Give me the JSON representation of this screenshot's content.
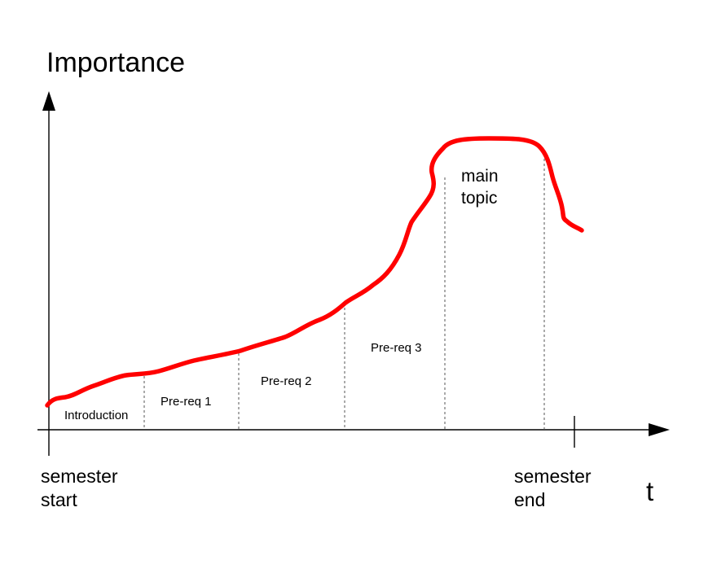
{
  "diagram": {
    "y_axis_label": "Importance",
    "x_axis_label": "t",
    "start_label_line1": "semester",
    "start_label_line2": "start",
    "end_label_line1": "semester",
    "end_label_line2": "end",
    "phases": [
      {
        "label": "Introduction"
      },
      {
        "label": "Pre-req 1"
      },
      {
        "label": "Pre-req 2"
      },
      {
        "label": "Pre-req 3"
      },
      {
        "label_line1": "main",
        "label_line2": "topic"
      }
    ],
    "colors": {
      "curve": "#ff0000",
      "axes": "#000000",
      "dividers": "#555555"
    }
  }
}
